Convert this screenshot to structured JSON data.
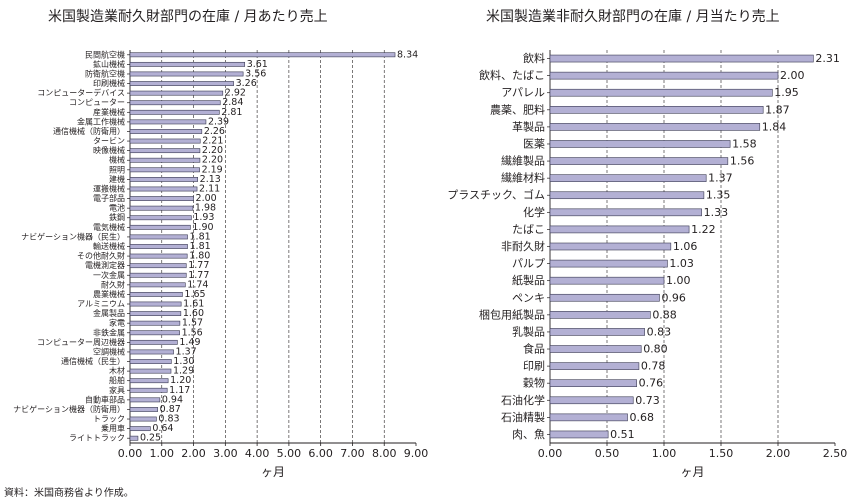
{
  "source_note": "資料：米国商務省より作成。",
  "colors": {
    "bar_fill": "#b3b0d4",
    "bar_stroke": "#3a3a52",
    "axis": "#231f20",
    "grid": "#231f20"
  },
  "chart_data": [
    {
      "type": "bar",
      "orientation": "horizontal",
      "title": "米国製造業耐久財部門の在庫 / 月あたり売上",
      "xlabel": "ヶ月",
      "ylabel": "",
      "xlim": [
        0,
        9
      ],
      "x_ticks": [
        "0.00",
        "1.00",
        "2.00",
        "3.00",
        "4.00",
        "5.00",
        "6.00",
        "7.00",
        "8.00",
        "9.00"
      ],
      "grid": "vertical dashed",
      "categories": [
        "民間航空機",
        "鉱山機械",
        "防衛航空機",
        "印刷機械",
        "コンピューターデバイス",
        "コンピューター",
        "産業機械",
        "金属工作機械",
        "通信機械（防衛用）",
        "タービン",
        "映像機械",
        "機械",
        "照明",
        "建機",
        "運搬機械",
        "電子部品",
        "電池",
        "鉄鋼",
        "電気機械",
        "ナビゲーション機器（民生）",
        "輸送機械",
        "その他耐久財",
        "電機測定器",
        "一次金属",
        "耐久財",
        "農業機械",
        "アルミニウム",
        "金属製品",
        "家電",
        "非鉄金属",
        "コンピューター周辺機器",
        "空調機械",
        "通信機械（民生）",
        "木材",
        "船舶",
        "家具",
        "自動車部品",
        "ナビゲーション機器（防衛用）",
        "トラック",
        "乗用車",
        "ライトトラック"
      ],
      "values": [
        8.34,
        3.61,
        3.56,
        3.26,
        2.92,
        2.84,
        2.81,
        2.39,
        2.26,
        2.21,
        2.2,
        2.2,
        2.19,
        2.13,
        2.11,
        2.0,
        1.98,
        1.93,
        1.9,
        1.81,
        1.81,
        1.8,
        1.77,
        1.77,
        1.74,
        1.65,
        1.61,
        1.6,
        1.57,
        1.56,
        1.49,
        1.37,
        1.3,
        1.29,
        1.2,
        1.17,
        0.94,
        0.87,
        0.83,
        0.64,
        0.25
      ],
      "value_labels": [
        "8.34",
        "3.61",
        "3.56",
        "3.26",
        "2.92",
        "2.84",
        "2.81",
        "2.39",
        "2.26",
        "2.21",
        "2.20",
        "2.20",
        "2.19",
        "2.13",
        "2.11",
        "2.00",
        "1.98",
        "1.93",
        "1.90",
        "1.81",
        "1.81",
        "1.80",
        "1.77",
        "1.77",
        "1.74",
        "1.65",
        "1.61",
        "1.60",
        "1.57",
        "1.56",
        "1.49",
        "1.37",
        "1.30",
        "1.29",
        "1.20",
        "1.17",
        "0.94",
        "0.87",
        "0.83",
        "0.64",
        "0.25"
      ]
    },
    {
      "type": "bar",
      "orientation": "horizontal",
      "title": "米国製造業非耐久財部門の在庫 / 月当たり売上",
      "xlabel": "ヶ月",
      "ylabel": "",
      "xlim": [
        0,
        2.5
      ],
      "x_ticks": [
        "0.00",
        "0.50",
        "1.00",
        "1.50",
        "2.00",
        "2.50"
      ],
      "grid": "vertical dashed",
      "categories": [
        "飲料",
        "飲料、たばこ",
        "アパレル",
        "農薬、肥料",
        "革製品",
        "医薬",
        "繊維製品",
        "繊維材料",
        "プラスチック、ゴム",
        "化学",
        "たばこ",
        "非耐久財",
        "パルプ",
        "紙製品",
        "ペンキ",
        "梱包用紙製品",
        "乳製品",
        "食品",
        "印刷",
        "穀物",
        "石油化学",
        "石油精製",
        "肉、魚"
      ],
      "values": [
        2.31,
        2.0,
        1.95,
        1.87,
        1.84,
        1.58,
        1.56,
        1.37,
        1.35,
        1.33,
        1.22,
        1.06,
        1.03,
        1.0,
        0.96,
        0.88,
        0.83,
        0.8,
        0.78,
        0.76,
        0.73,
        0.68,
        0.51
      ],
      "value_labels": [
        "2.31",
        "2.00",
        "1.95",
        "1.87",
        "1.84",
        "1.58",
        "1.56",
        "1.37",
        "1.35",
        "1.33",
        "1.22",
        "1.06",
        "1.03",
        "1.00",
        "0.96",
        "0.88",
        "0.83",
        "0.80",
        "0.78",
        "0.76",
        "0.73",
        "0.68",
        "0.51"
      ]
    }
  ]
}
